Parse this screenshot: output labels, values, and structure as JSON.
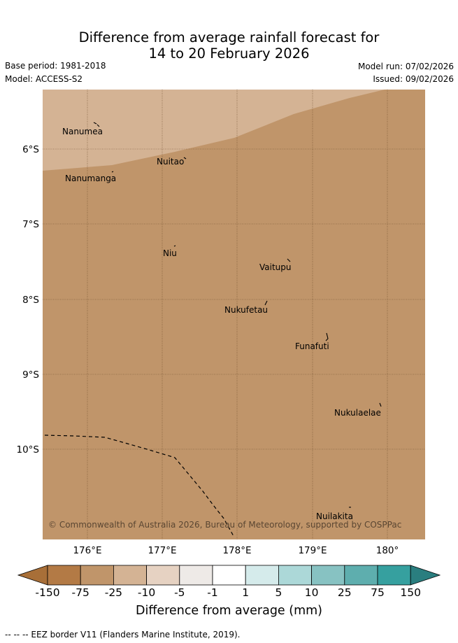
{
  "header": {
    "title_line1": "Difference from average rainfall forecast for",
    "title_line2": "14 to 20 February 2026",
    "base_period": "Base period: 1981-2018",
    "model": "Model: ACCESS-S2",
    "model_run": "Model run: 07/02/2026",
    "issued": "Issued: 09/02/2026"
  },
  "map": {
    "colors": {
      "light_category": "#d4b394",
      "main_category": "#c0956a",
      "grid_line": "#6b4a2a",
      "eez_line": "#000000"
    },
    "longitude_labels": [
      "176°E",
      "177°E",
      "178°E",
      "179°E",
      "180°"
    ],
    "latitude_labels": [
      "6°S",
      "7°S",
      "8°S",
      "9°S",
      "10°S"
    ],
    "places": [
      "Nanumea",
      "Nuitao",
      "Nanumanga",
      "Niu",
      "Vaitupu",
      "Nukufetau",
      "Funafuti",
      "Nukulaelae",
      "Nuilakita"
    ],
    "copyright": "© Commonwealth of Australia 2026, Bureau of Meteorology, supported by COSPPac"
  },
  "colorbar": {
    "colors": [
      "#a86f38",
      "#b37a45",
      "#c0956a",
      "#d4b394",
      "#e6d2c2",
      "#eeeae7",
      "#ffffff",
      "#d5ebeb",
      "#acd8d8",
      "#87c2c2",
      "#5eaeae",
      "#36a09f",
      "#2a7e7f"
    ],
    "labels": [
      "-150",
      "-75",
      "-25",
      "-10",
      "-5",
      "-1",
      "1",
      "5",
      "10",
      "25",
      "75",
      "150"
    ],
    "title": "Difference from average (mm)"
  },
  "footnote": "--  --  -- EEZ border V11 (Flanders Marine Institute, 2019)."
}
